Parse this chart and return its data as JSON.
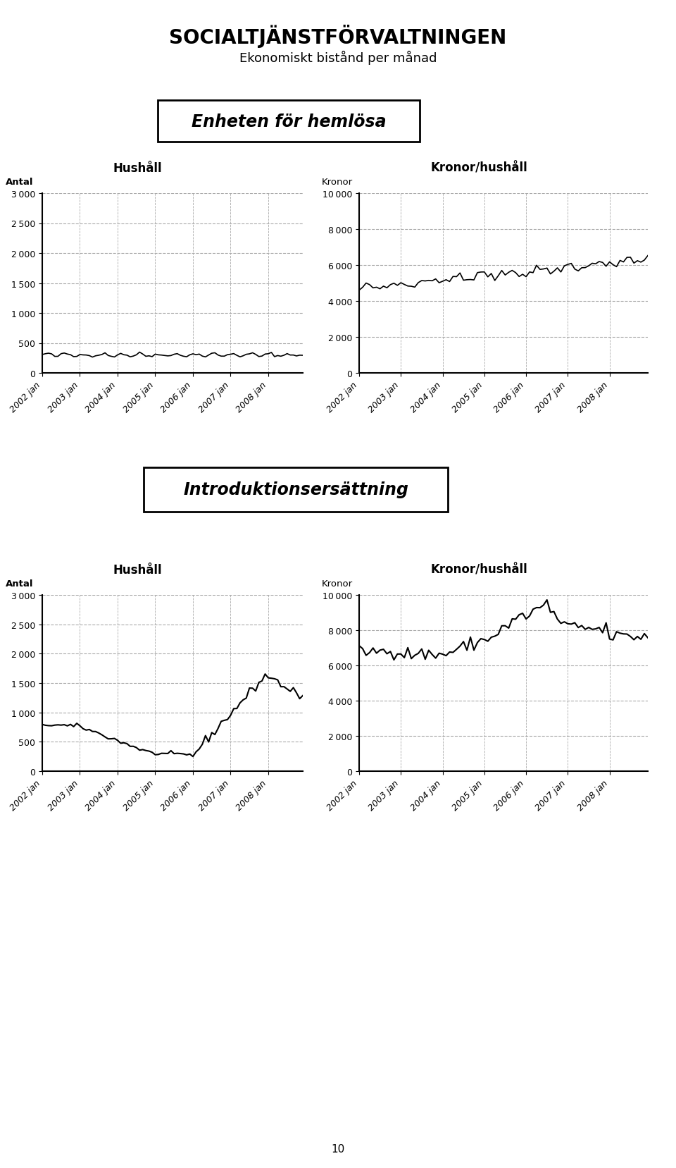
{
  "title": "SOCIALTJÄNSTFÖRVALTNINGEN",
  "subtitle": "Ekonomiskt bistånd per månad",
  "section1_label": "Enheten för hemlösa",
  "section2_label": "Introduktionsersättning",
  "page_number": "10",
  "hushall_label": "Hushåll",
  "kronor_hushall_label": "Kronor/hushåll",
  "antal_label": "Antal",
  "kronor_label": "Kronor",
  "x_ticks": [
    "2002 jan",
    "2003 jan",
    "2004 jan",
    "2005 jan",
    "2006 jan",
    "2007 jan",
    "2008 jan"
  ],
  "hemlosa_hushall_yticks": [
    0,
    500,
    1000,
    1500,
    2000,
    2500,
    3000
  ],
  "hemlosa_kronor_yticks": [
    0,
    2000,
    4000,
    6000,
    8000,
    10000
  ],
  "intro_hushall_yticks": [
    0,
    500,
    1000,
    1500,
    2000,
    2500,
    3000
  ],
  "intro_kronor_yticks": [
    0,
    2000,
    4000,
    6000,
    8000,
    10000
  ],
  "background_color": "#ffffff",
  "line_color": "#000000",
  "grid_color": "#aaaaaa"
}
